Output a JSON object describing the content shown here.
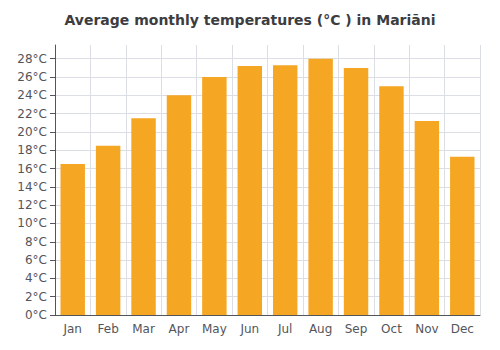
{
  "chart_data": {
    "type": "bar",
    "title": "Average monthly temperatures (°C ) in Mariāni",
    "categories": [
      "Jan",
      "Feb",
      "Mar",
      "Apr",
      "May",
      "Jun",
      "Jul",
      "Aug",
      "Sep",
      "Oct",
      "Nov",
      "Dec"
    ],
    "values": [
      16.5,
      18.5,
      21.5,
      24.0,
      26.0,
      27.2,
      27.3,
      28.0,
      27.0,
      25.0,
      21.2,
      17.3
    ],
    "color": "#F5A623",
    "ylim": [
      0,
      29.5
    ],
    "yticks": [
      {
        "value": 0,
        "label": "0°C"
      },
      {
        "value": 2,
        "label": "2°C"
      },
      {
        "value": 4,
        "label": "4°C"
      },
      {
        "value": 6,
        "label": "6°C"
      },
      {
        "value": 8,
        "label": "8°C"
      },
      {
        "value": 10,
        "label": "10°C"
      },
      {
        "value": 12,
        "label": "12°C"
      },
      {
        "value": 14,
        "label": "14°C"
      },
      {
        "value": 16,
        "label": "16°C"
      },
      {
        "value": 18,
        "label": "18°C"
      },
      {
        "value": 20,
        "label": "20°C"
      },
      {
        "value": 22,
        "label": "22°C"
      },
      {
        "value": 24,
        "label": "24°C"
      },
      {
        "value": 26,
        "label": "26°C"
      },
      {
        "value": 28,
        "label": "28°C"
      }
    ],
    "grid": true
  }
}
